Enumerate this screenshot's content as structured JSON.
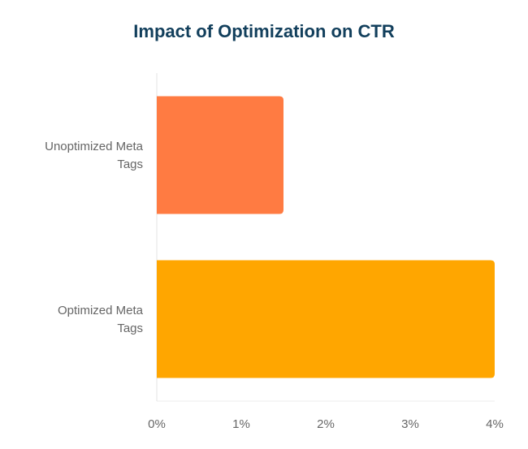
{
  "chart_data": {
    "type": "bar",
    "orientation": "horizontal",
    "title": "Impact of Optimization on CTR",
    "xlabel": "",
    "ylabel": "",
    "categories": [
      "Unoptimized Meta Tags",
      "Optimized Meta Tags"
    ],
    "category_label_lines": [
      [
        "Unoptimized Meta",
        "Tags"
      ],
      [
        "Optimized Meta",
        "Tags"
      ]
    ],
    "values": [
      1.5,
      4.0
    ],
    "value_unit": "%",
    "colors": [
      "#ff7b42",
      "#ffa600"
    ],
    "xlim": [
      0,
      4
    ],
    "xticks": [
      0,
      1,
      2,
      3,
      4
    ],
    "xtick_labels": [
      "0%",
      "1%",
      "2%",
      "3%",
      "4%"
    ],
    "grid": false,
    "legend": "none"
  }
}
